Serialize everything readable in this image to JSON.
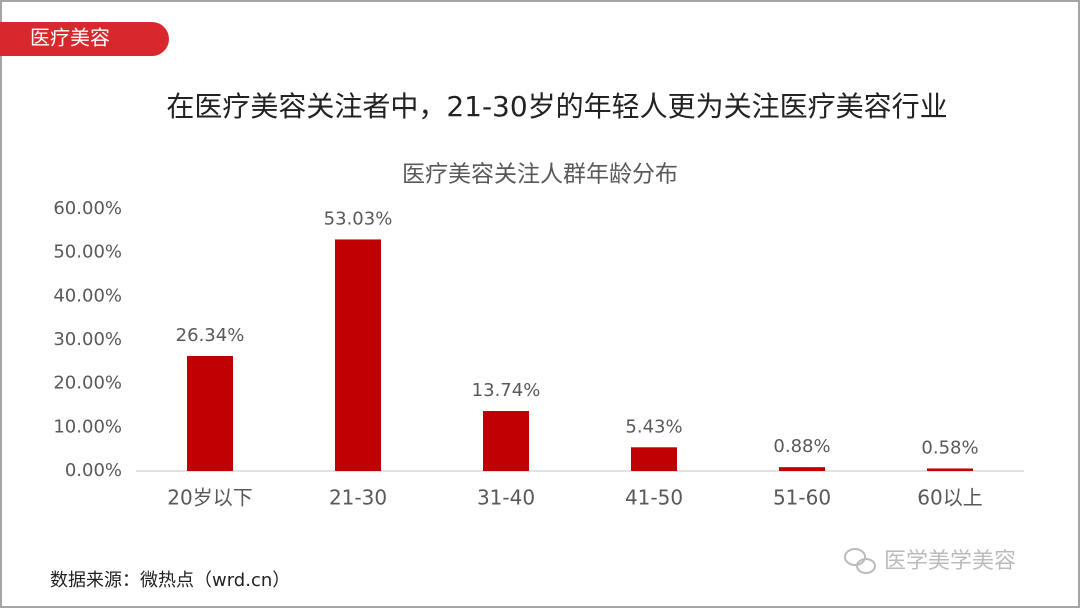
{
  "tag": "医疗美容",
  "headline": "在医疗美容关注者中，21-30岁的年轻人更为关注医疗美容行业",
  "source": "数据来源：微热点（wrd.cn）",
  "watermark": "医学美学美容",
  "chart_data": {
    "type": "bar",
    "title": "医疗美容关注人群年龄分布",
    "categories": [
      "20岁以下",
      "21-30",
      "31-40",
      "41-50",
      "51-60",
      "60以上"
    ],
    "values": [
      26.34,
      53.03,
      13.74,
      5.43,
      0.88,
      0.58
    ],
    "value_labels": [
      "26.34%",
      "53.03%",
      "13.74%",
      "5.43%",
      "0.88%",
      "0.58%"
    ],
    "color": "#c00000",
    "ylim": [
      0,
      60
    ],
    "yticks": [
      {
        "value": 0,
        "label": "0.00%"
      },
      {
        "value": 10,
        "label": "10.00%"
      },
      {
        "value": 20,
        "label": "20.00%"
      },
      {
        "value": 30,
        "label": "30.00%"
      },
      {
        "value": 40,
        "label": "40.00%"
      },
      {
        "value": 50,
        "label": "50.00%"
      },
      {
        "value": 60,
        "label": "60.00%"
      }
    ],
    "grid": false
  }
}
